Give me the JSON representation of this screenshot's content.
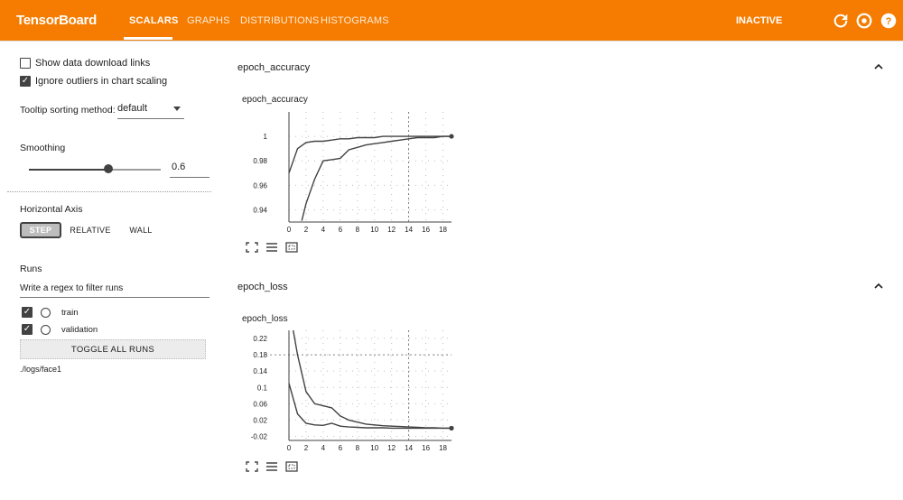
{
  "header": {
    "logo": "TensorBoard",
    "tabs": [
      {
        "label": "SCALARS",
        "active": true
      },
      {
        "label": "GRAPHS",
        "active": false
      },
      {
        "label": "DISTRIBUTIONS",
        "active": false
      },
      {
        "label": "HISTOGRAMS",
        "active": false
      }
    ],
    "inactive_label": "INACTIVE",
    "icons": [
      "refresh-icon",
      "settings-icon",
      "help-icon"
    ],
    "brand_color": "#f57c00"
  },
  "sidebar": {
    "show_download": {
      "label": "Show data download links",
      "checked": false
    },
    "ignore_outliers": {
      "label": "Ignore outliers in chart scaling",
      "checked": true
    },
    "tooltip_label": "Tooltip sorting method:",
    "tooltip_value": "default",
    "smoothing_label": "Smoothing",
    "smoothing_value": "0.6",
    "smoothing_fraction": 0.6,
    "horizontal_axis_label": "Horizontal Axis",
    "axis_options": [
      "STEP",
      "RELATIVE",
      "WALL"
    ],
    "axis_selected": "STEP",
    "runs_label": "Runs",
    "regex_placeholder": "Write a regex to filter runs",
    "runs": [
      {
        "name": "train",
        "checked": true
      },
      {
        "name": "validation",
        "checked": true
      }
    ],
    "toggle_label": "TOGGLE ALL RUNS",
    "logdir": "./logs/face1"
  },
  "main": {
    "sections": [
      {
        "title": "epoch_accuracy",
        "card_title": "epoch_accuracy",
        "chart_data": {
          "type": "line",
          "x_ticks": [
            "0",
            "2",
            "4",
            "6",
            "8",
            "10",
            "12",
            "14",
            "16",
            "18"
          ],
          "y_ticks": [
            "0.94",
            "0.96",
            "0.98",
            "1"
          ],
          "xlim": [
            0,
            19
          ],
          "ylim": [
            0.93,
            1.02
          ],
          "series": [
            {
              "x": [
                0,
                1,
                2,
                3,
                4,
                5,
                6,
                7,
                8,
                9,
                10,
                11,
                12,
                13,
                14,
                15,
                16,
                17,
                18,
                19
              ],
              "values": [
                0.97,
                0.99,
                0.995,
                0.996,
                0.996,
                0.997,
                0.998,
                0.998,
                0.999,
                0.999,
                0.999,
                1.0,
                1.0,
                1.0,
                1.0,
                1.0,
                1.0,
                1.0,
                1.0,
                1.0
              ]
            },
            {
              "x": [
                1.5,
                2,
                3,
                4,
                5,
                6,
                7,
                8,
                9,
                10,
                11,
                12,
                13,
                14,
                15,
                16,
                17,
                18,
                19
              ],
              "values": [
                0.931,
                0.945,
                0.965,
                0.98,
                0.981,
                0.982,
                0.989,
                0.991,
                0.993,
                0.994,
                0.995,
                0.996,
                0.997,
                0.998,
                0.999,
                0.999,
                0.999,
                1.0,
                1.0
              ]
            }
          ],
          "hover_x": 14
        }
      },
      {
        "title": "epoch_loss",
        "card_title": "epoch_loss",
        "chart_data": {
          "type": "line",
          "x_ticks": [
            "0",
            "2",
            "4",
            "6",
            "8",
            "10",
            "12",
            "14",
            "16",
            "18"
          ],
          "y_ticks": [
            "-0.02",
            "0.02",
            "0.06",
            "0.1",
            "0.14",
            "0.18",
            "0.22"
          ],
          "xlim": [
            0,
            19
          ],
          "ylim": [
            -0.03,
            0.24
          ],
          "series": [
            {
              "x": [
                0,
                1,
                2,
                3,
                4,
                5,
                6,
                7,
                8,
                9,
                10,
                11,
                12,
                13,
                14,
                15,
                16,
                17,
                18,
                19
              ],
              "values": [
                0.11,
                0.035,
                0.012,
                0.008,
                0.007,
                0.012,
                0.005,
                0.003,
                0.002,
                0.001,
                0.001,
                0.001,
                0.0,
                0.0,
                0.0,
                0.0,
                0.0,
                0.0,
                0.0,
                0.0
              ]
            },
            {
              "x": [
                0.5,
                1,
                2,
                3,
                4,
                5,
                6,
                7,
                8,
                9,
                10,
                11,
                12,
                13,
                14,
                15,
                16,
                17,
                18,
                19
              ],
              "values": [
                0.24,
                0.18,
                0.09,
                0.06,
                0.055,
                0.05,
                0.03,
                0.02,
                0.015,
                0.01,
                0.008,
                0.006,
                0.005,
                0.004,
                0.003,
                0.002,
                0.001,
                0.001,
                0.0,
                0.0
              ]
            }
          ],
          "hover_x": 14,
          "hover_y": 0.18
        }
      }
    ]
  }
}
